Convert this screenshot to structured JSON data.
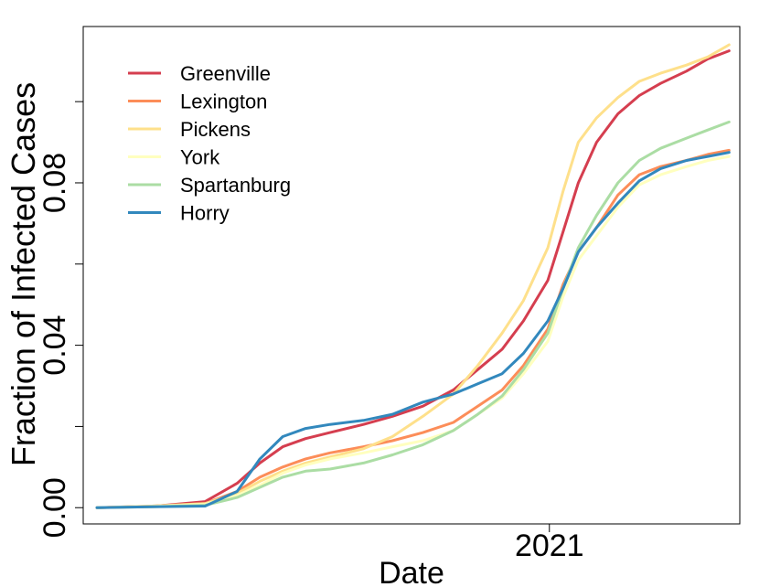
{
  "chart_data": {
    "type": "line",
    "xlabel": "Date",
    "ylabel": "Fraction of Infected Cases",
    "x_unit": "date",
    "xlim": [
      "2020-03-01",
      "2021-05-06"
    ],
    "ylim": [
      -0.004,
      0.1185
    ],
    "x_ticks": [
      {
        "label": "2021",
        "value": "2021-01-01"
      }
    ],
    "y_ticks": [
      {
        "label": "0.00",
        "value": 0.0
      },
      {
        "label": "",
        "value": 0.02
      },
      {
        "label": "0.04",
        "value": 0.04
      },
      {
        "label": "",
        "value": 0.06
      },
      {
        "label": "0.08",
        "value": 0.08
      },
      {
        "label": "",
        "value": 0.1
      }
    ],
    "grid": false,
    "legend": "top-left",
    "series": [
      {
        "name": "Greenville",
        "color": "#d53e4f",
        "x": [
          "2020-03-10",
          "2020-04-15",
          "2020-05-20",
          "2020-06-10",
          "2020-06-25",
          "2020-07-10",
          "2020-07-25",
          "2020-08-10",
          "2020-09-01",
          "2020-09-20",
          "2020-10-10",
          "2020-10-30",
          "2020-11-15",
          "2020-12-01",
          "2020-12-15",
          "2020-12-31",
          "2021-01-10",
          "2021-01-20",
          "2021-02-01",
          "2021-02-15",
          "2021-03-01",
          "2021-03-15",
          "2021-04-01",
          "2021-04-15",
          "2021-04-29"
        ],
        "y": [
          0.0,
          0.0003,
          0.0015,
          0.006,
          0.011,
          0.015,
          0.017,
          0.0185,
          0.0205,
          0.0225,
          0.025,
          0.029,
          0.034,
          0.039,
          0.046,
          0.056,
          0.068,
          0.08,
          0.09,
          0.097,
          0.1015,
          0.1045,
          0.1075,
          0.1105,
          0.1125
        ]
      },
      {
        "name": "Lexington",
        "color": "#fc8d59",
        "x": [
          "2020-03-10",
          "2020-04-15",
          "2020-05-20",
          "2020-06-10",
          "2020-06-25",
          "2020-07-10",
          "2020-07-25",
          "2020-08-10",
          "2020-09-01",
          "2020-09-20",
          "2020-10-10",
          "2020-10-30",
          "2020-11-15",
          "2020-12-01",
          "2020-12-15",
          "2020-12-31",
          "2021-01-10",
          "2021-01-20",
          "2021-02-01",
          "2021-02-15",
          "2021-03-01",
          "2021-03-15",
          "2021-04-01",
          "2021-04-15",
          "2021-04-29"
        ],
        "y": [
          0.0,
          0.0004,
          0.001,
          0.004,
          0.0075,
          0.01,
          0.012,
          0.0135,
          0.015,
          0.0165,
          0.0185,
          0.021,
          0.025,
          0.029,
          0.035,
          0.044,
          0.055,
          0.063,
          0.069,
          0.077,
          0.082,
          0.084,
          0.0855,
          0.087,
          0.088
        ]
      },
      {
        "name": "Pickens",
        "color": "#fee08b",
        "x": [
          "2020-03-10",
          "2020-04-15",
          "2020-05-20",
          "2020-06-10",
          "2020-06-25",
          "2020-07-10",
          "2020-07-25",
          "2020-08-10",
          "2020-09-01",
          "2020-09-20",
          "2020-10-10",
          "2020-10-30",
          "2020-11-15",
          "2020-12-01",
          "2020-12-15",
          "2020-12-31",
          "2021-01-10",
          "2021-01-20",
          "2021-02-01",
          "2021-02-15",
          "2021-03-01",
          "2021-03-15",
          "2021-04-01",
          "2021-04-15",
          "2021-04-29"
        ],
        "y": [
          0.0,
          0.0004,
          0.001,
          0.0035,
          0.0065,
          0.009,
          0.011,
          0.0125,
          0.0145,
          0.0175,
          0.0225,
          0.028,
          0.035,
          0.043,
          0.051,
          0.064,
          0.078,
          0.09,
          0.096,
          0.101,
          0.105,
          0.107,
          0.109,
          0.111,
          0.114
        ]
      },
      {
        "name": "York",
        "color": "#ffffbf",
        "x": [
          "2020-03-10",
          "2020-04-15",
          "2020-05-20",
          "2020-06-10",
          "2020-06-25",
          "2020-07-10",
          "2020-07-25",
          "2020-08-10",
          "2020-09-01",
          "2020-09-20",
          "2020-10-10",
          "2020-10-30",
          "2020-11-15",
          "2020-12-01",
          "2020-12-15",
          "2020-12-31",
          "2021-01-10",
          "2021-01-20",
          "2021-02-01",
          "2021-02-15",
          "2021-03-01",
          "2021-03-15",
          "2021-04-01",
          "2021-04-15",
          "2021-04-29"
        ],
        "y": [
          0.0,
          0.0003,
          0.0008,
          0.003,
          0.0055,
          0.0085,
          0.0105,
          0.012,
          0.0135,
          0.015,
          0.0165,
          0.019,
          0.023,
          0.027,
          0.033,
          0.041,
          0.052,
          0.061,
          0.067,
          0.074,
          0.0795,
          0.082,
          0.084,
          0.0855,
          0.0865
        ]
      },
      {
        "name": "Spartanburg",
        "color": "#abdda4",
        "x": [
          "2020-03-10",
          "2020-04-15",
          "2020-05-20",
          "2020-06-10",
          "2020-06-25",
          "2020-07-10",
          "2020-07-25",
          "2020-08-10",
          "2020-09-01",
          "2020-09-20",
          "2020-10-10",
          "2020-10-30",
          "2020-11-15",
          "2020-12-01",
          "2020-12-15",
          "2020-12-31",
          "2021-01-10",
          "2021-01-20",
          "2021-02-01",
          "2021-02-15",
          "2021-03-01",
          "2021-03-15",
          "2021-04-01",
          "2021-04-15",
          "2021-04-29"
        ],
        "y": [
          0.0,
          0.0002,
          0.0006,
          0.0025,
          0.005,
          0.0075,
          0.009,
          0.0095,
          0.011,
          0.013,
          0.0155,
          0.019,
          0.023,
          0.0275,
          0.034,
          0.043,
          0.054,
          0.064,
          0.072,
          0.08,
          0.0855,
          0.0885,
          0.091,
          0.093,
          0.095
        ]
      },
      {
        "name": "Horry",
        "color": "#3288bd",
        "x": [
          "2020-03-10",
          "2020-04-15",
          "2020-05-20",
          "2020-06-10",
          "2020-06-25",
          "2020-07-10",
          "2020-07-25",
          "2020-08-10",
          "2020-09-01",
          "2020-09-20",
          "2020-10-10",
          "2020-10-30",
          "2020-11-15",
          "2020-12-01",
          "2020-12-15",
          "2020-12-31",
          "2021-01-10",
          "2021-01-20",
          "2021-02-01",
          "2021-02-15",
          "2021-03-01",
          "2021-03-15",
          "2021-04-01",
          "2021-04-15",
          "2021-04-29"
        ],
        "y": [
          0.0,
          0.0002,
          0.0004,
          0.004,
          0.012,
          0.0175,
          0.0195,
          0.0205,
          0.0215,
          0.023,
          0.026,
          0.028,
          0.0305,
          0.033,
          0.038,
          0.046,
          0.054,
          0.063,
          0.069,
          0.075,
          0.0805,
          0.0835,
          0.0855,
          0.0865,
          0.0875
        ]
      }
    ]
  }
}
